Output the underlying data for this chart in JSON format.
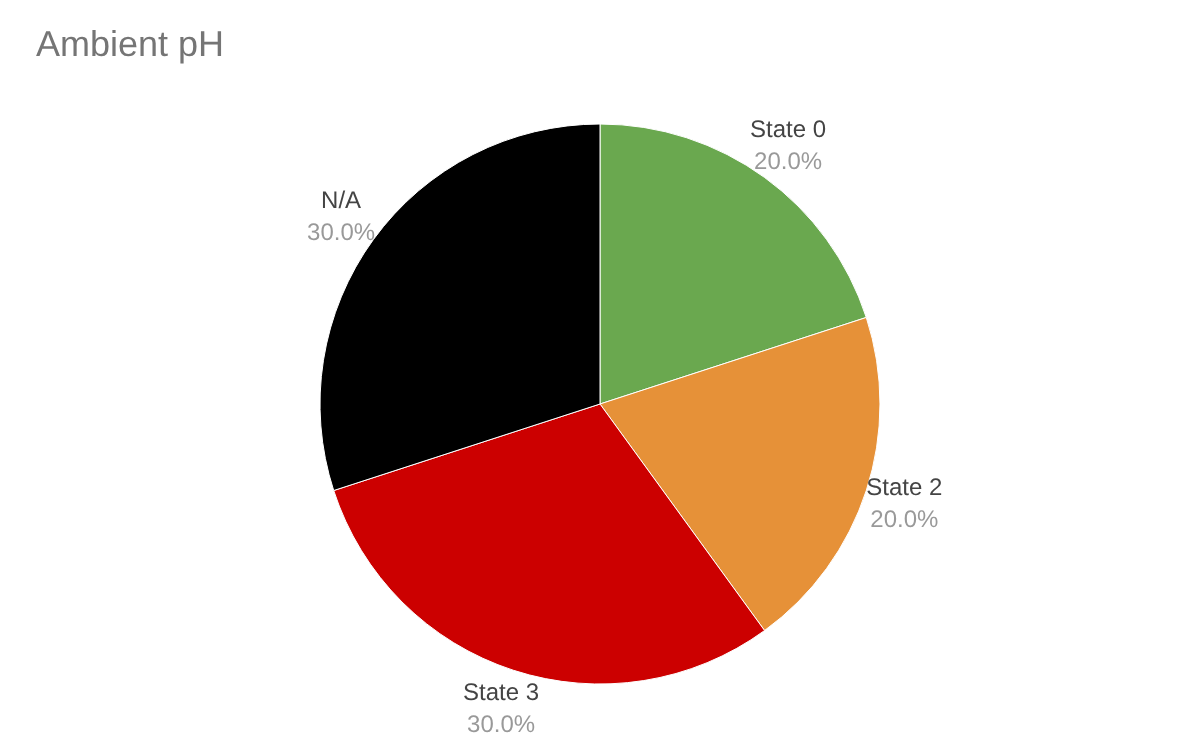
{
  "chart_data": {
    "type": "pie",
    "title": "Ambient pH",
    "categories": [
      "State 0",
      "State 2",
      "State 3",
      "N/A"
    ],
    "values": [
      20,
      20,
      30,
      30
    ],
    "value_labels": [
      "20.0%",
      "20.0%",
      "30.0%",
      "30.0%"
    ],
    "colors": [
      "#6aa84f",
      "#e69138",
      "#cc0000",
      "#000000"
    ]
  }
}
